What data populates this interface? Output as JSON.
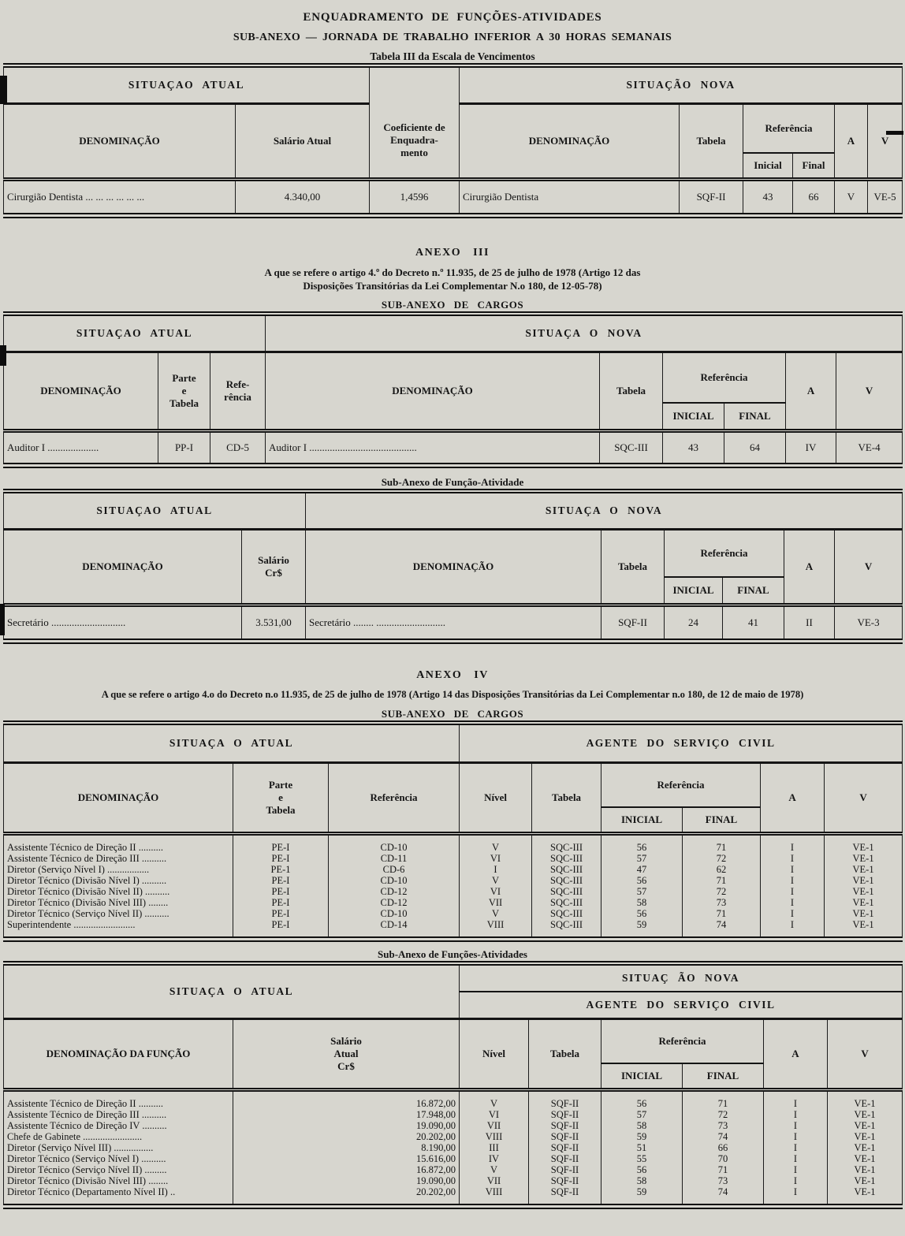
{
  "page": {
    "title": "ENQUADRAMENTO DE FUNÇÕES-ATIVIDADES",
    "subtitle": "SUB-ANEXO — JORNADA DE TRABALHO INFERIOR A 30 HORAS SEMANAIS",
    "caption": "Tabela III da Escala de Vencimentos"
  },
  "t1": {
    "band_atual": "SITUAÇAO ATUAL",
    "band_nova": "SITUAÇÃO NOVA",
    "col_denominacao": "DENOMINAÇÃO",
    "col_salario": "Salário Atual",
    "col_coeficiente": "Coeficiente de\nEnquadra-\nmento",
    "col_denominacao_nova": "DENOMINAÇÃO",
    "col_tabela": "Tabela",
    "col_referencia": "Referência",
    "col_inicial": "Inicial",
    "col_final": "Final",
    "col_a": "A",
    "col_v": "V",
    "rows": [
      [
        "Cirurgião Dentista ... ... ... ... ... ...",
        "4.340,00",
        "1,4596",
        "Cirurgião Dentista",
        "SQF-II",
        "43",
        "66",
        "V",
        "VE-5"
      ]
    ]
  },
  "anexo3": {
    "title": "ANEXO III",
    "reference": "A que se refere o artigo 4.º do Decreto n.º 11.935, de 25 de julho de 1978 (Artigo 12 das\nDisposições Transitórias da Lei Complementar N.o 180, de 12-05-78)",
    "subheading": "SUB-ANEXO DE CARGOS",
    "caption_funcao": "Sub-Anexo de Função-Atividade"
  },
  "t2": {
    "band_atual": "SITUAÇAO ATUAL",
    "band_nova": "SITUAÇA O NOVA",
    "col_denominacao": "DENOMINAÇÃO",
    "col_parte": "Parte\ne\nTabela",
    "col_referencia_atual": "Refe-\nrência",
    "col_denominacao_nova": "DENOMINAÇÃO",
    "col_tabela": "Tabela",
    "col_referencia": "Referência",
    "col_inicial": "INICIAL",
    "col_final": "FINAL",
    "col_a": "A",
    "col_v": "V",
    "rows": [
      [
        "Auditor I ....................",
        "PP-I",
        "CD-5",
        "Auditor I ..........................................",
        "SQC-III",
        "43",
        "64",
        "IV",
        "VE-4"
      ]
    ]
  },
  "t3": {
    "band_atual": "SITUAÇAO ATUAL",
    "band_nova": "SITUAÇA O NOVA",
    "col_denominacao": "DENOMINAÇÃO",
    "col_salario": "Salário\nCr$",
    "col_denominacao_nova": "DENOMINAÇÃO",
    "col_tabela": "Tabela",
    "col_referencia": "Referência",
    "col_inicial": "INICIAL",
    "col_final": "FINAL",
    "col_a": "A",
    "col_v": "V",
    "rows": [
      [
        "Secretário .............................",
        "3.531,00",
        "Secretário ........ ...........................",
        "SQF-II",
        "24",
        "41",
        "II",
        "VE-3"
      ]
    ]
  },
  "anexo4": {
    "title": "ANEXO IV",
    "reference": "A que se refere o artigo 4.o do Decreto n.o 11.935, de 25 de julho de 1978 (Artigo 14 das Disposições Transitórias da Lei Complementar n.o 180, de 12 de maio de 1978)",
    "subheading": "SUB-ANEXO DE CARGOS",
    "caption_funcoes": "Sub-Anexo de Funções-Atividades"
  },
  "t4": {
    "band_atual": "SITUAÇA O ATUAL",
    "band_agente": "AGENTE DO SERVIÇO CIVIL",
    "col_denominacao": "DENOMINAÇÃO",
    "col_parte": "Parte\ne\nTabela",
    "col_referencia_atual": "Referência",
    "col_nivel": "Nível",
    "col_tabela": "Tabela",
    "col_referencia": "Referência",
    "col_inicial": "INICIAL",
    "col_final": "FINAL",
    "col_a": "A",
    "col_v": "V",
    "rows": [
      [
        "Assistente Técnico de Direção II ..........",
        "PE-I",
        "CD-10",
        "V",
        "SQC-III",
        "56",
        "71",
        "I",
        "VE-1"
      ],
      [
        "Assistente Técnico de Direção III ..........",
        "PE-I",
        "CD-11",
        "VI",
        "SQC-III",
        "57",
        "72",
        "I",
        "VE-1"
      ],
      [
        "Diretor (Serviço Nível I) .................",
        "PE-1",
        "CD-6",
        "I",
        "SQC-III",
        "47",
        "62",
        "I",
        "VE-1"
      ],
      [
        "Diretor Técnico (Divisão Nível I) ..........",
        "PE-I",
        "CD-10",
        "V",
        "SQC-III",
        "56",
        "71",
        "I",
        "VE-1"
      ],
      [
        "Diretor Técnico (Divisão Nível II) ..........",
        "PE-I",
        "CD-12",
        "VI",
        "SQC-III",
        "57",
        "72",
        "I",
        "VE-1"
      ],
      [
        "Diretor Técnico (Divisão Nível III) ........",
        "PE-I",
        "CD-12",
        "VII",
        "SQC-III",
        "58",
        "73",
        "I",
        "VE-1"
      ],
      [
        "Diretor Técnico (Serviço Nível II) ..........",
        "PE-I",
        "CD-10",
        "V",
        "SQC-III",
        "56",
        "71",
        "I",
        "VE-1"
      ],
      [
        "Superintendente .........................",
        "PE-I",
        "CD-14",
        "VIII",
        "SQC-III",
        "59",
        "74",
        "I",
        "VE-1"
      ]
    ]
  },
  "t5": {
    "band_atual": "SITUAÇA O ATUAL",
    "band_nova": "SITUAÇ ÃO NOVA",
    "band_agente": "AGENTE DO SERVIÇO CIVIL",
    "col_denominacao": "DENOMINAÇÃO DA FUNÇÃO",
    "col_salario": "Salário\nAtual\nCr$",
    "col_nivel": "Nível",
    "col_tabela": "Tabela",
    "col_referencia": "Referência",
    "col_inicial": "INICIAL",
    "col_final": "FINAL",
    "col_a": "A",
    "col_v": "V",
    "rows": [
      [
        "Assistente Técnico de Direção II ..........",
        "16.872,00",
        "V",
        "SQF-II",
        "56",
        "71",
        "I",
        "VE-1"
      ],
      [
        "Assistente Técnico de Direção III ..........",
        "17.948,00",
        "VI",
        "SQF-II",
        "57",
        "72",
        "I",
        "VE-1"
      ],
      [
        "Assistente Técnico de Direção IV ..........",
        "19.090,00",
        "VII",
        "SQF-II",
        "58",
        "73",
        "I",
        "VE-1"
      ],
      [
        "Chefe de Gabinete ........................",
        "20.202,00",
        "VIII",
        "SQF-II",
        "59",
        "74",
        "I",
        "VE-1"
      ],
      [
        "Diretor (Serviço Nível III) ................",
        "8.190,00",
        "III",
        "SQF-II",
        "51",
        "66",
        "I",
        "VE-1"
      ],
      [
        "Diretor Técnico (Serviço Nível I) ..........",
        "15.616,00",
        "IV",
        "SQF-II",
        "55",
        "70",
        "I",
        "VE-1"
      ],
      [
        "Diretor Técnico (Serviço Nível II) .........",
        "16.872,00",
        "V",
        "SQF-II",
        "56",
        "71",
        "I",
        "VE-1"
      ],
      [
        "Diretor Técnico (Divisão Nível III) ........",
        "19.090,00",
        "VII",
        "SQF-II",
        "58",
        "73",
        "I",
        "VE-1"
      ],
      [
        "Diretor Técnico (Departamento Nível II) ..",
        "20.202,00",
        "VIII",
        "SQF-II",
        "59",
        "74",
        "I",
        "VE-1"
      ]
    ]
  }
}
